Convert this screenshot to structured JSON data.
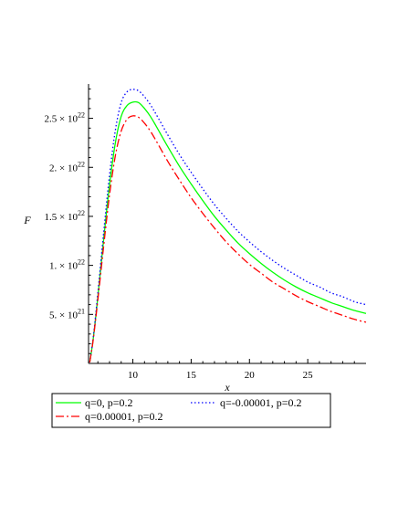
{
  "chart_data": {
    "type": "line",
    "title": "",
    "xlabel": "x",
    "ylabel": "F",
    "xlim": [
      6.2,
      30
    ],
    "ylim": [
      0,
      2.85e+22
    ],
    "x_ticks": [
      {
        "value": 10,
        "label": "10"
      },
      {
        "value": 15,
        "label": "15"
      },
      {
        "value": 20,
        "label": "20"
      },
      {
        "value": 25,
        "label": "25"
      }
    ],
    "y_ticks": [
      {
        "value": 5e+21,
        "mantissa": "5.",
        "times": "× 10",
        "exp": "21"
      },
      {
        "value": 1e+22,
        "mantissa": "1.",
        "times": "× 10",
        "exp": "22"
      },
      {
        "value": 1.5e+22,
        "mantissa": "1.5",
        "times": "× 10",
        "exp": "22"
      },
      {
        "value": 2e+22,
        "mantissa": "2.",
        "times": "× 10",
        "exp": "22"
      },
      {
        "value": 2.5e+22,
        "mantissa": "2.5",
        "times": "× 10",
        "exp": "22"
      }
    ],
    "grid": false,
    "legend_position": "bottom",
    "series": [
      {
        "name": "q=0, p=0.2",
        "color": "#00ff00",
        "dash": "solid",
        "x": [
          6.3,
          6.6,
          7,
          7.5,
          8,
          8.5,
          9,
          9.5,
          10,
          10.5,
          11,
          11.5,
          12,
          13,
          14,
          15,
          16,
          17,
          18,
          19,
          20,
          21,
          22,
          23,
          24,
          25,
          26,
          27,
          28,
          29,
          30
        ],
        "y": [
          1e+20,
          2.5e+21,
          6.8e+21,
          1.27e+22,
          1.82e+22,
          2.25e+22,
          2.52e+22,
          2.63e+22,
          2.665e+22,
          2.66e+22,
          2.6e+22,
          2.52e+22,
          2.42e+22,
          2.21e+22,
          2.01e+22,
          1.83e+22,
          1.66e+22,
          1.5e+22,
          1.36e+22,
          1.23e+22,
          1.12e+22,
          1.02e+22,
          9.3e+21,
          8.5e+21,
          7.8e+21,
          7.2e+21,
          6.7e+21,
          6.2e+21,
          5.8e+21,
          5.4e+21,
          5.1e+21
        ]
      },
      {
        "name": "q=-0.00001, p=0.2",
        "color": "#0000ff",
        "dash": "dotted",
        "x": [
          6.3,
          6.6,
          7,
          7.5,
          8,
          8.5,
          9,
          9.5,
          10,
          10.5,
          11,
          11.5,
          12,
          13,
          14,
          15,
          16,
          17,
          18,
          19,
          20,
          21,
          22,
          23,
          24,
          25,
          26,
          27,
          28,
          29,
          30
        ],
        "y": [
          1e+20,
          2.6e+21,
          7.2e+21,
          1.34e+22,
          1.92e+22,
          2.38e+22,
          2.66e+22,
          2.77e+22,
          2.795e+22,
          2.78e+22,
          2.72e+22,
          2.64e+22,
          2.54e+22,
          2.33e+22,
          2.13e+22,
          1.95e+22,
          1.78e+22,
          1.62e+22,
          1.48e+22,
          1.35e+22,
          1.24e+22,
          1.14e+22,
          1.05e+22,
          9.7e+21,
          9e+21,
          8.3e+21,
          7.8e+21,
          7.2e+21,
          6.8e+21,
          6.3e+21,
          6e+21
        ]
      },
      {
        "name": "q=0.00001, p=0.2",
        "color": "#ff0000",
        "dash": "dashdot",
        "x": [
          6.3,
          6.6,
          7,
          7.5,
          8,
          8.5,
          9,
          9.5,
          10,
          10.5,
          11,
          11.5,
          12,
          13,
          14,
          15,
          16,
          17,
          18,
          19,
          20,
          21,
          22,
          23,
          24,
          25,
          26,
          27,
          28,
          29,
          30
        ],
        "y": [
          1e+20,
          2.4e+21,
          6.5e+21,
          1.2e+22,
          1.72e+22,
          2.12e+22,
          2.37e+22,
          2.49e+22,
          2.525e+22,
          2.51e+22,
          2.45e+22,
          2.37e+22,
          2.27e+22,
          2.06e+22,
          1.87e+22,
          1.69e+22,
          1.53e+22,
          1.38e+22,
          1.24e+22,
          1.12e+22,
          1.01e+22,
          9.2e+21,
          8.3e+21,
          7.6e+21,
          6.9e+21,
          6.3e+21,
          5.8e+21,
          5.3e+21,
          4.9e+21,
          4.5e+21,
          4.2e+21
        ]
      }
    ],
    "legend_layout": [
      [
        0,
        1
      ],
      [
        2
      ]
    ]
  }
}
